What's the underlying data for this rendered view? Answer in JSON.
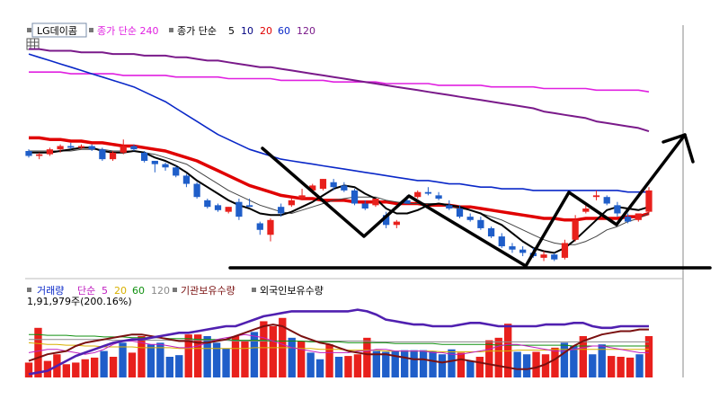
{
  "price_legend": {
    "stock_name": "LG데이콤",
    "ma_long_label": "종가 단순 240",
    "ma_short_label": "종가 단순",
    "ma_periods": [
      "5",
      "10",
      "20",
      "60",
      "120"
    ]
  },
  "volume_legend": {
    "volume_label": "거래량",
    "ma_label": "단순",
    "ma_periods": [
      "5",
      "20",
      "60",
      "120"
    ],
    "institution_label": "기관보유수량",
    "foreign_label": "외국인보유수량",
    "readout": "1,91,979주(200.16%)"
  },
  "colors": {
    "up": "#e8201c",
    "down": "#1f5ec9",
    "ma5": "#000000",
    "ma10": "#444444",
    "ma20": "#e00000",
    "ma60": "#0a28c8",
    "ma120": "#7a1a8a",
    "ma240": "#e020e0",
    "vol_ma5": "#c020c0",
    "vol_ma20": "#d8b000",
    "vol_ma60": "#109010",
    "vol_ma120": "#8a8a8a",
    "institution": "#7a1010",
    "foreign": "#5020b0"
  },
  "chart_data": [
    {
      "type": "candlestick",
      "title": "LG데이콤",
      "sessions": 60,
      "candles": [
        {
          "o": 48,
          "h": 49,
          "l": 44,
          "c": 45
        },
        {
          "o": 45,
          "h": 47,
          "l": 43,
          "c": 46
        },
        {
          "o": 46,
          "h": 50,
          "l": 45,
          "c": 49
        },
        {
          "o": 49,
          "h": 52,
          "l": 47,
          "c": 51
        },
        {
          "o": 51,
          "h": 53,
          "l": 49,
          "c": 50
        },
        {
          "o": 50,
          "h": 52,
          "l": 49,
          "c": 51
        },
        {
          "o": 51,
          "h": 52,
          "l": 48,
          "c": 49
        },
        {
          "o": 49,
          "h": 50,
          "l": 42,
          "c": 43
        },
        {
          "o": 43,
          "h": 48,
          "l": 42,
          "c": 47
        },
        {
          "o": 47,
          "h": 55,
          "l": 46,
          "c": 51
        },
        {
          "o": 51,
          "h": 52,
          "l": 48,
          "c": 49
        },
        {
          "o": 47,
          "h": 48,
          "l": 41,
          "c": 42
        },
        {
          "o": 42,
          "h": 42,
          "l": 35,
          "c": 40
        },
        {
          "o": 40,
          "h": 41,
          "l": 36,
          "c": 38
        },
        {
          "o": 38,
          "h": 39,
          "l": 32,
          "c": 33
        },
        {
          "o": 33,
          "h": 34,
          "l": 26,
          "c": 28
        },
        {
          "o": 28,
          "h": 29,
          "l": 19,
          "c": 20
        },
        {
          "o": 18,
          "h": 19,
          "l": 13,
          "c": 14
        },
        {
          "o": 15,
          "h": 16,
          "l": 11,
          "c": 12
        },
        {
          "o": 11,
          "h": 14,
          "l": 10,
          "c": 14
        },
        {
          "o": 17,
          "h": 19,
          "l": 6,
          "c": 8
        },
        {
          "o": 15,
          "h": 19,
          "l": 14,
          "c": 14
        },
        {
          "o": 4,
          "h": 5,
          "l": -3,
          "c": 0
        },
        {
          "o": -3,
          "h": 7,
          "l": -7,
          "c": 6
        },
        {
          "o": 14,
          "h": 16,
          "l": 8,
          "c": 10
        },
        {
          "o": 15,
          "h": 19,
          "l": 14,
          "c": 18
        },
        {
          "o": 19,
          "h": 25,
          "l": 18,
          "c": 21
        },
        {
          "o": 24,
          "h": 28,
          "l": 22,
          "c": 27
        },
        {
          "o": 25,
          "h": 31,
          "l": 24,
          "c": 31
        },
        {
          "o": 29,
          "h": 31,
          "l": 24,
          "c": 26
        },
        {
          "o": 27,
          "h": 29,
          "l": 23,
          "c": 24
        },
        {
          "o": 24,
          "h": 25,
          "l": 15,
          "c": 16
        },
        {
          "o": 16,
          "h": 18,
          "l": 12,
          "c": 13
        },
        {
          "o": 15,
          "h": 19,
          "l": 14,
          "c": 19
        },
        {
          "o": 9,
          "h": 11,
          "l": 1,
          "c": 3
        },
        {
          "o": 3,
          "h": 6,
          "l": 1,
          "c": 5
        },
        {
          "o": 18,
          "h": 21,
          "l": 16,
          "c": 16
        },
        {
          "o": 20,
          "h": 24,
          "l": 19,
          "c": 23
        },
        {
          "o": 23,
          "h": 26,
          "l": 21,
          "c": 22
        },
        {
          "o": 21,
          "h": 23,
          "l": 18,
          "c": 19
        },
        {
          "o": 15,
          "h": 18,
          "l": 12,
          "c": 13
        },
        {
          "o": 13,
          "h": 15,
          "l": 7,
          "c": 8
        },
        {
          "o": 8,
          "h": 10,
          "l": 5,
          "c": 6
        },
        {
          "o": 6,
          "h": 8,
          "l": 0,
          "c": 1
        },
        {
          "o": 1,
          "h": 2,
          "l": -5,
          "c": -4
        },
        {
          "o": -4,
          "h": -2,
          "l": -11,
          "c": -10
        },
        {
          "o": -10,
          "h": -8,
          "l": -14,
          "c": -12
        },
        {
          "o": -12,
          "h": -10,
          "l": -16,
          "c": -14
        },
        {
          "o": -14,
          "h": -11,
          "l": -17,
          "c": -16
        },
        {
          "o": -17,
          "h": -13,
          "l": -19,
          "c": -15
        },
        {
          "o": -15,
          "h": -14,
          "l": -19,
          "c": -18
        },
        {
          "o": -17,
          "h": -6,
          "l": -18,
          "c": -8
        },
        {
          "o": -6,
          "h": 9,
          "l": -7,
          "c": 6
        },
        {
          "o": 11,
          "h": 15,
          "l": 10,
          "c": 13
        },
        {
          "o": 20,
          "h": 24,
          "l": 18,
          "c": 21
        },
        {
          "o": 20,
          "h": 21,
          "l": 15,
          "c": 16
        },
        {
          "o": 15,
          "h": 17,
          "l": 8,
          "c": 10
        },
        {
          "o": 8,
          "h": 10,
          "l": 4,
          "c": 5
        },
        {
          "o": 6,
          "h": 10,
          "l": 5,
          "c": 10
        },
        {
          "o": 11,
          "h": 26,
          "l": 10,
          "c": 24
        }
      ],
      "moving_averages": {
        "ma5": [
          47,
          47,
          47,
          48,
          49,
          50,
          50,
          48,
          47,
          47,
          48,
          47,
          44,
          42,
          39,
          35,
          30,
          26,
          22,
          18,
          15,
          13,
          10,
          9,
          9,
          11,
          14,
          17,
          21,
          25,
          27,
          26,
          22,
          19,
          13,
          10,
          10,
          12,
          15,
          16,
          15,
          14,
          12,
          10,
          6,
          3,
          -2,
          -7,
          -11,
          -13,
          -14,
          -11,
          -6,
          0,
          6,
          12,
          14,
          13,
          12,
          14
        ],
        "ma10": [
          48,
          48,
          48,
          48,
          48,
          49,
          49,
          49,
          48,
          48,
          48,
          47,
          46,
          44,
          42,
          40,
          36,
          32,
          28,
          24,
          21,
          18,
          15,
          13,
          11,
          10,
          12,
          14,
          16,
          18,
          19,
          20,
          20,
          20,
          18,
          17,
          16,
          16,
          16,
          16,
          14,
          13,
          12,
          10,
          8,
          6,
          3,
          0,
          -3,
          -6,
          -8,
          -9,
          -9,
          -7,
          -4,
          0,
          2,
          5,
          7,
          10
        ],
        "ma20": [
          56,
          56,
          55,
          55,
          54,
          54,
          53,
          53,
          52,
          51,
          51,
          50,
          49,
          48,
          46,
          44,
          42,
          39,
          36,
          33,
          30,
          27,
          25,
          23,
          21,
          20,
          19,
          19,
          18,
          18,
          18,
          17,
          17,
          17,
          17,
          16,
          16,
          16,
          15,
          15,
          15,
          14,
          14,
          13,
          12,
          11,
          10,
          9,
          8,
          7,
          7,
          6,
          6,
          7,
          7,
          7,
          7,
          8,
          8,
          10
        ],
        "ma60": [
          107,
          105,
          103,
          101,
          99,
          97,
          95,
          93,
          91,
          89,
          87,
          84,
          81,
          78,
          74,
          70,
          66,
          62,
          58,
          55,
          52,
          49,
          47,
          45,
          43,
          42,
          41,
          40,
          39,
          38,
          37,
          36,
          35,
          34,
          33,
          32,
          31,
          30,
          30,
          29,
          28,
          28,
          27,
          26,
          26,
          25,
          25,
          25,
          24,
          24,
          24,
          24,
          24,
          24,
          24,
          24,
          24,
          23,
          23,
          23
        ],
        "ma120": [
          110,
          110,
          109,
          109,
          109,
          108,
          108,
          108,
          107,
          107,
          107,
          106,
          106,
          106,
          105,
          105,
          104,
          103,
          103,
          102,
          101,
          100,
          99,
          99,
          98,
          97,
          96,
          95,
          94,
          93,
          92,
          91,
          90,
          89,
          88,
          87,
          86,
          85,
          84,
          83,
          82,
          81,
          80,
          79,
          78,
          77,
          76,
          75,
          74,
          72,
          71,
          70,
          69,
          68,
          66,
          65,
          64,
          63,
          62,
          60
        ],
        "ma240": [
          96,
          96,
          96,
          96,
          95,
          95,
          95,
          95,
          95,
          94,
          94,
          94,
          94,
          94,
          93,
          93,
          93,
          93,
          93,
          92,
          92,
          92,
          92,
          92,
          91,
          91,
          91,
          91,
          91,
          90,
          90,
          90,
          90,
          90,
          89,
          89,
          89,
          89,
          89,
          88,
          88,
          88,
          88,
          88,
          87,
          87,
          87,
          87,
          87,
          86,
          86,
          86,
          86,
          86,
          85,
          85,
          85,
          85,
          85,
          84
        ]
      },
      "ylim": [
        -22,
        118
      ]
    },
    {
      "type": "bar",
      "title": "거래량",
      "values": [
        18,
        60,
        20,
        28,
        16,
        18,
        22,
        24,
        32,
        25,
        42,
        30,
        50,
        40,
        42,
        25,
        27,
        52,
        52,
        50,
        42,
        35,
        50,
        45,
        55,
        68,
        62,
        72,
        48,
        44,
        30,
        22,
        40,
        25,
        26,
        28,
        48,
        32,
        31,
        32,
        33,
        33,
        33,
        32,
        28,
        34,
        30,
        20,
        25,
        45,
        48,
        65,
        31,
        28,
        31,
        28,
        36,
        42,
        38,
        50,
        28,
        40,
        26,
        25,
        24,
        28,
        50
      ],
      "institution": [
        20,
        24,
        28,
        30,
        32,
        38,
        42,
        44,
        46,
        48,
        50,
        52,
        52,
        50,
        48,
        46,
        44,
        44,
        42,
        42,
        44,
        46,
        50,
        54,
        58,
        62,
        64,
        62,
        56,
        50,
        46,
        42,
        40,
        36,
        32,
        30,
        28,
        28,
        28,
        26,
        24,
        22,
        22,
        20,
        18,
        20,
        22,
        20,
        18,
        16,
        14,
        12,
        10,
        10,
        12,
        16,
        22,
        30,
        38,
        44,
        48,
        52,
        54,
        56,
        56,
        58,
        58
      ],
      "foreign": [
        4,
        6,
        8,
        14,
        20,
        26,
        30,
        34,
        38,
        42,
        44,
        46,
        46,
        48,
        50,
        52,
        54,
        54,
        56,
        58,
        60,
        62,
        62,
        66,
        70,
        74,
        76,
        78,
        80,
        80,
        80,
        80,
        80,
        80,
        80,
        82,
        80,
        76,
        70,
        68,
        66,
        64,
        64,
        62,
        62,
        62,
        64,
        66,
        66,
        64,
        62,
        62,
        62,
        62,
        62,
        64,
        64,
        64,
        66,
        66,
        62,
        60,
        60,
        62,
        62,
        62,
        62
      ],
      "ma5": [
        30,
        32,
        34,
        34,
        32,
        30,
        28,
        30,
        34,
        40,
        44,
        44,
        42,
        40,
        40,
        38,
        36,
        36,
        38,
        42,
        46,
        48,
        50,
        52,
        50,
        48,
        44,
        40,
        36,
        34,
        32,
        30,
        30,
        30,
        30,
        32,
        32,
        34,
        34,
        32,
        32,
        32,
        32,
        30,
        30,
        28,
        28,
        30,
        32,
        34,
        38,
        40,
        40,
        38,
        36,
        34,
        32,
        32,
        34,
        36,
        38,
        38,
        36,
        34,
        32,
        30,
        30
      ],
      "ma20": [
        42,
        41,
        40,
        40,
        39,
        39,
        38,
        38,
        37,
        37,
        37,
        37,
        36,
        36,
        36,
        36,
        35,
        35,
        35,
        35,
        35,
        35,
        35,
        35,
        36,
        36,
        36,
        36,
        36,
        35,
        35,
        34,
        34,
        34,
        33,
        33,
        33,
        33,
        32,
        32,
        32,
        32,
        32,
        32,
        31,
        31,
        31,
        31,
        31,
        32,
        32,
        32,
        33,
        33,
        33,
        33,
        34,
        34,
        34,
        34,
        34,
        34,
        34,
        34,
        34,
        34,
        34
      ],
      "ma60": [
        52,
        52,
        51,
        51,
        51,
        50,
        50,
        50,
        49,
        49,
        49,
        48,
        48,
        48,
        48,
        47,
        47,
        47,
        46,
        46,
        46,
        46,
        45,
        45,
        45,
        45,
        44,
        44,
        44,
        44,
        43,
        43,
        43,
        43,
        42,
        42,
        42,
        42,
        42,
        41,
        41,
        41,
        41,
        41,
        40,
        40,
        40,
        40,
        40,
        40,
        39,
        39,
        39,
        39,
        39,
        39,
        39,
        39,
        38,
        38,
        38,
        38,
        38,
        38,
        38,
        38,
        38
      ],
      "ma120": [
        46,
        46,
        46,
        46,
        46,
        46,
        46,
        46,
        46,
        45,
        45,
        45,
        45,
        45,
        45,
        45,
        45,
        45,
        45,
        45,
        45,
        45,
        44,
        44,
        44,
        44,
        44,
        44,
        44,
        44,
        44,
        44,
        44,
        44,
        44,
        44,
        44,
        43,
        43,
        43,
        43,
        43,
        43,
        43,
        43,
        43,
        43,
        43,
        43,
        43,
        43,
        43,
        43,
        43,
        43,
        43,
        43,
        43,
        43,
        43,
        43,
        43,
        43,
        43,
        43,
        43,
        43
      ],
      "ylim": [
        0,
        100
      ]
    }
  ]
}
